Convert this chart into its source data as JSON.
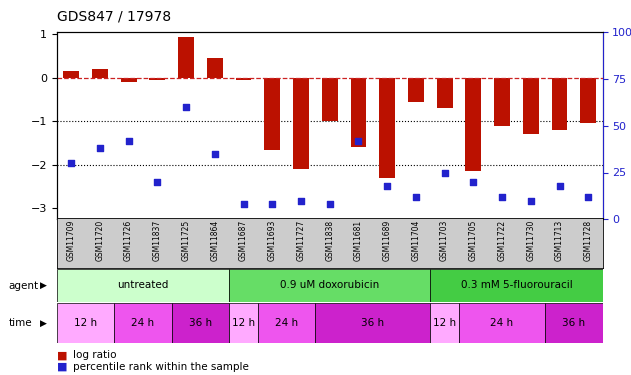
{
  "title": "GDS847 / 17978",
  "samples": [
    "GSM11709",
    "GSM11720",
    "GSM11726",
    "GSM11837",
    "GSM11725",
    "GSM11864",
    "GSM11687",
    "GSM11693",
    "GSM11727",
    "GSM11838",
    "GSM11681",
    "GSM11689",
    "GSM11704",
    "GSM11703",
    "GSM11705",
    "GSM11722",
    "GSM11730",
    "GSM11713",
    "GSM11728"
  ],
  "log_ratio": [
    0.15,
    0.2,
    -0.1,
    -0.05,
    0.93,
    0.45,
    -0.05,
    -1.65,
    -2.1,
    -1.0,
    -1.6,
    -2.3,
    -0.55,
    -0.7,
    -2.15,
    -1.1,
    -1.3,
    -1.2,
    -1.05
  ],
  "percentile": [
    30,
    38,
    42,
    20,
    60,
    35,
    8,
    8,
    10,
    8,
    42,
    18,
    12,
    25,
    20,
    12,
    10,
    18,
    12
  ],
  "bar_color": "#bb1100",
  "dot_color": "#2222cc",
  "dashed_color": "#cc2222",
  "ylim_left": [
    -3.25,
    1.05
  ],
  "ylim_right": [
    0,
    100
  ],
  "yticks_left": [
    -3,
    -2,
    -1,
    0,
    1
  ],
  "yticks_right": [
    0,
    25,
    50,
    75,
    100
  ],
  "dotted_lines": [
    -1,
    -2
  ],
  "agent_groups": [
    {
      "label": "untreated",
      "start": 0,
      "end": 6,
      "color": "#ccffcc"
    },
    {
      "label": "0.9 uM doxorubicin",
      "start": 6,
      "end": 13,
      "color": "#66dd66"
    },
    {
      "label": "0.3 mM 5-fluorouracil",
      "start": 13,
      "end": 19,
      "color": "#44cc44"
    }
  ],
  "time_groups": [
    {
      "label": "12 h",
      "start": 0,
      "end": 2,
      "color": "#ffaaff"
    },
    {
      "label": "24 h",
      "start": 2,
      "end": 4,
      "color": "#ee55ee"
    },
    {
      "label": "36 h",
      "start": 4,
      "end": 6,
      "color": "#cc22cc"
    },
    {
      "label": "12 h",
      "start": 6,
      "end": 7,
      "color": "#ffaaff"
    },
    {
      "label": "24 h",
      "start": 7,
      "end": 9,
      "color": "#ee55ee"
    },
    {
      "label": "36 h",
      "start": 9,
      "end": 13,
      "color": "#cc22cc"
    },
    {
      "label": "12 h",
      "start": 13,
      "end": 14,
      "color": "#ffaaff"
    },
    {
      "label": "24 h",
      "start": 14,
      "end": 17,
      "color": "#ee55ee"
    },
    {
      "label": "36 h",
      "start": 17,
      "end": 19,
      "color": "#cc22cc"
    }
  ],
  "right_axis_color": "#2222cc",
  "background_color": "#ffffff",
  "plot_bg": "#ffffff",
  "names_bg": "#cccccc"
}
